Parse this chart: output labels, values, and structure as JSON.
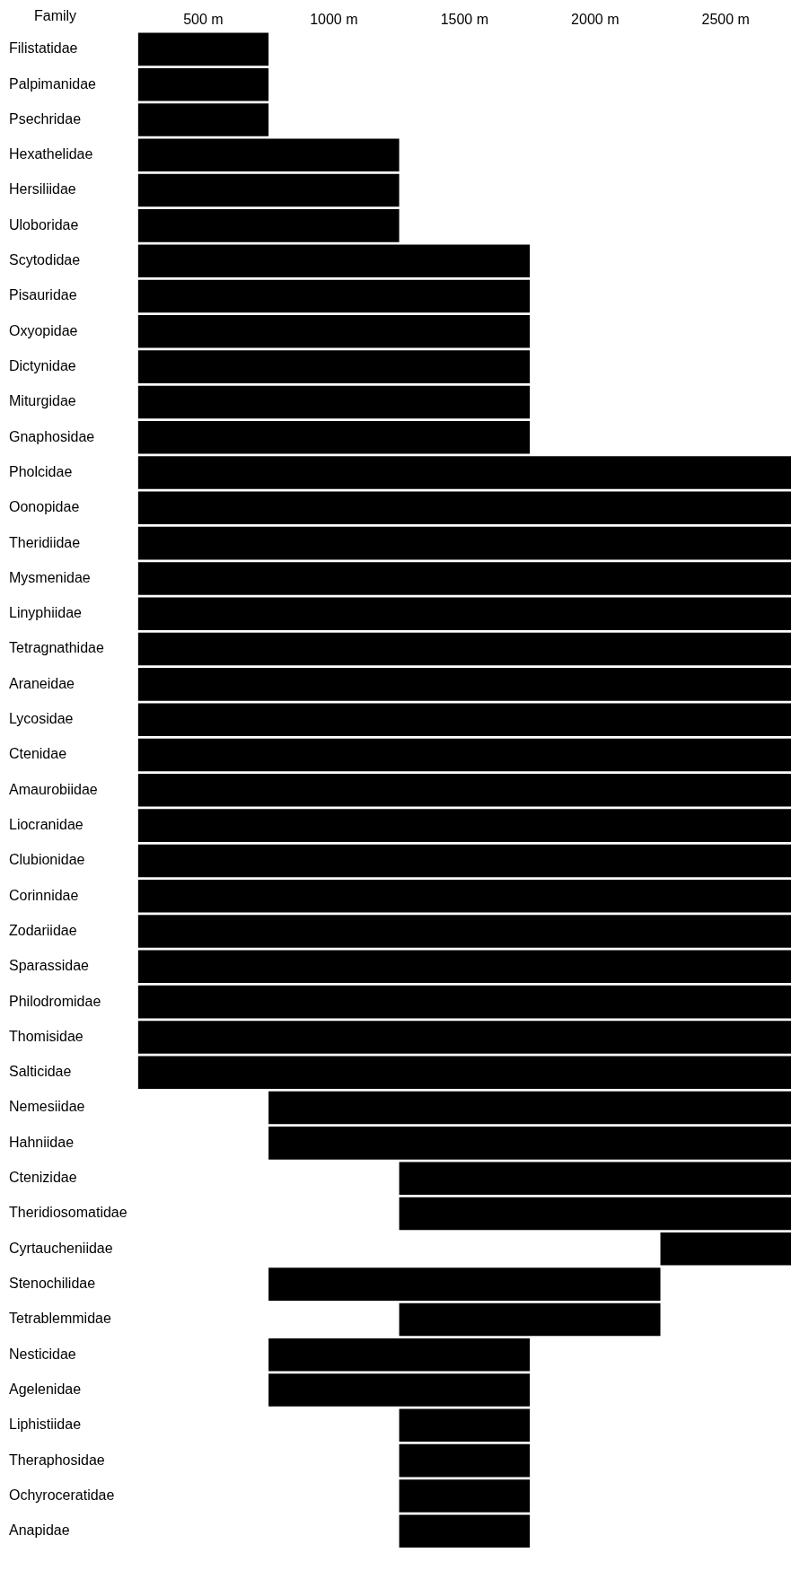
{
  "chart_data": {
    "type": "bar",
    "orientation": "horizontal",
    "ylabel": "Family",
    "categories": [
      "Filistatidae",
      "Palpimanidae",
      "Psechridae",
      "Hexathelidae",
      "Hersiliidae",
      "Uloboridae",
      "Scytodidae",
      "Pisauridae",
      "Oxyopidae",
      "Dictynidae",
      "Miturgidae",
      "Gnaphosidae",
      "Pholcidae",
      "Oonopidae",
      "Theridiidae",
      "Mysmenidae",
      "Linyphiidae",
      "Tetragnathidae",
      "Araneidae",
      "Lycosidae",
      "Ctenidae",
      "Amaurobiidae",
      "Liocranidae",
      "Clubionidae",
      "Corinnidae",
      "Zodariidae",
      "Sparassidae",
      "Philodromidae",
      "Thomisidae",
      "Salticidae",
      "Nemesiidae",
      "Hahniidae",
      "Ctenizidae",
      "Theridiosomatidae",
      "Cyrtaucheniidae",
      "Stenochilidae",
      "Tetrablemmidae",
      "Nesticidae",
      "Agelenidae",
      "Liphistiidae",
      "Theraphosidae",
      "Ochyroceratidae",
      "Anapidae"
    ],
    "base": [
      250,
      250,
      250,
      250,
      250,
      250,
      250,
      250,
      250,
      250,
      250,
      250,
      250,
      250,
      250,
      250,
      250,
      250,
      250,
      250,
      250,
      250,
      250,
      250,
      250,
      250,
      250,
      250,
      250,
      250,
      750,
      750,
      1250,
      1250,
      2250,
      750,
      1250,
      750,
      750,
      1250,
      1250,
      1250,
      1250
    ],
    "values": [
      500,
      500,
      500,
      1000,
      1000,
      1000,
      1500,
      1500,
      1500,
      1500,
      1500,
      1500,
      2500,
      2500,
      2500,
      2500,
      2500,
      2500,
      2500,
      2500,
      2500,
      2500,
      2500,
      2500,
      2500,
      2500,
      2500,
      2500,
      2500,
      2500,
      2000,
      2000,
      1500,
      1500,
      500,
      1500,
      1000,
      1000,
      1000,
      500,
      500,
      500,
      500
    ],
    "color": "#000000",
    "xlim": [
      250,
      2750
    ],
    "xticks": [
      {
        "value": 500,
        "label": "500 m"
      },
      {
        "value": 1000,
        "label": "1000 m"
      },
      {
        "value": 1500,
        "label": "1500 m"
      },
      {
        "value": 2000,
        "label": "2000 m"
      },
      {
        "value": 2500,
        "label": "2500 m"
      }
    ],
    "grid": false,
    "legend": false
  }
}
